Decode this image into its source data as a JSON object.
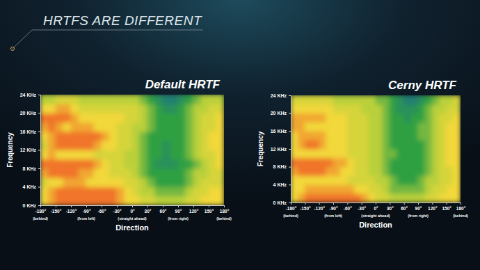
{
  "slide_title": "HRTFS ARE DIFFERENT",
  "chart_data": [
    {
      "type": "heatmap",
      "title": "Default HRTF",
      "x_label": "Direction",
      "y_label": "Frequency",
      "xlim": [
        -180,
        180
      ],
      "ylim": [
        0,
        24
      ],
      "zlim": [
        0,
        10
      ],
      "xticks": [
        {
          "value": -180,
          "label": "-180°"
        },
        {
          "value": -150,
          "label": "-150°"
        },
        {
          "value": -120,
          "label": "-120°"
        },
        {
          "value": -90,
          "label": "-90°"
        },
        {
          "value": -60,
          "label": "-60°"
        },
        {
          "value": -30,
          "label": "-30°"
        },
        {
          "value": 0,
          "label": "0°"
        },
        {
          "value": 30,
          "label": "30°"
        },
        {
          "value": 60,
          "label": "60°"
        },
        {
          "value": 90,
          "label": "90°"
        },
        {
          "value": 120,
          "label": "120°"
        },
        {
          "value": 150,
          "label": "150°"
        },
        {
          "value": 180,
          "label": "180°"
        }
      ],
      "yticks": [
        {
          "value": 0,
          "label": "0 KHz"
        },
        {
          "value": 4,
          "label": "4 KHz"
        },
        {
          "value": 8,
          "label": "8 KHz"
        },
        {
          "value": 12,
          "label": "12 KHz"
        },
        {
          "value": 16,
          "label": "16 KHz"
        },
        {
          "value": 20,
          "label": "20 KHz"
        },
        {
          "value": 24,
          "label": "24 KHz"
        }
      ],
      "direction_notes": [
        {
          "value": -180,
          "label": "(behind)"
        },
        {
          "value": -90,
          "label": "(from left)"
        },
        {
          "value": 0,
          "label": "(straight ahead)"
        },
        {
          "value": 90,
          "label": "(from right)"
        },
        {
          "value": 180,
          "label": "(behind)"
        }
      ],
      "x_bins": [
        -180,
        -165,
        -150,
        -135,
        -120,
        -105,
        -90,
        -75,
        -60,
        -45,
        -30,
        -15,
        0,
        15,
        30,
        45,
        60,
        75,
        90,
        105,
        120,
        135,
        150,
        165,
        180
      ],
      "y_bins": [
        0,
        2,
        4,
        6,
        8,
        10,
        12,
        14,
        16,
        18,
        20,
        22,
        24
      ],
      "cells": [
        [
          7,
          8,
          9,
          9,
          9,
          9,
          9,
          9,
          9,
          9,
          8,
          7,
          7,
          6,
          6,
          5,
          5,
          5,
          5,
          6,
          6,
          7,
          7,
          7
        ],
        [
          7,
          8,
          9,
          9,
          9,
          9,
          9,
          9,
          9,
          9,
          8,
          7,
          6,
          5,
          5,
          4,
          4,
          4,
          4,
          5,
          6,
          6,
          7,
          7
        ],
        [
          6,
          7,
          7,
          8,
          8,
          8,
          7,
          7,
          7,
          7,
          7,
          6,
          6,
          5,
          4,
          3,
          3,
          3,
          3,
          4,
          5,
          6,
          6,
          6
        ],
        [
          8,
          9,
          9,
          9,
          9,
          8,
          8,
          7,
          7,
          6,
          6,
          6,
          5,
          4,
          3,
          3,
          3,
          3,
          3,
          4,
          5,
          5,
          6,
          6
        ],
        [
          9,
          9,
          9,
          9,
          9,
          9,
          9,
          8,
          7,
          6,
          6,
          5,
          5,
          4,
          3,
          2,
          2,
          2,
          3,
          3,
          4,
          5,
          6,
          7
        ],
        [
          7,
          8,
          7,
          7,
          7,
          7,
          7,
          6,
          6,
          6,
          6,
          5,
          5,
          4,
          3,
          3,
          2,
          3,
          3,
          4,
          5,
          6,
          6,
          7
        ],
        [
          6,
          8,
          9,
          9,
          9,
          9,
          9,
          8,
          7,
          7,
          6,
          6,
          5,
          4,
          3,
          3,
          2,
          3,
          3,
          4,
          5,
          6,
          7,
          7
        ],
        [
          7,
          8,
          9,
          9,
          9,
          9,
          9,
          9,
          8,
          7,
          6,
          6,
          5,
          4,
          3,
          3,
          3,
          3,
          3,
          4,
          5,
          6,
          7,
          7
        ],
        [
          8,
          9,
          8,
          7,
          8,
          8,
          8,
          7,
          7,
          7,
          6,
          6,
          5,
          5,
          4,
          3,
          3,
          3,
          3,
          4,
          5,
          6,
          6,
          7
        ],
        [
          9,
          9,
          9,
          9,
          8,
          7,
          7,
          7,
          7,
          7,
          7,
          6,
          6,
          5,
          4,
          3,
          3,
          3,
          3,
          4,
          5,
          6,
          6,
          7
        ],
        [
          7,
          7,
          8,
          8,
          7,
          6,
          6,
          6,
          6,
          6,
          6,
          6,
          6,
          5,
          4,
          3,
          2,
          2,
          3,
          4,
          5,
          5,
          6,
          6
        ],
        [
          5,
          5,
          6,
          6,
          6,
          5,
          5,
          5,
          5,
          5,
          5,
          5,
          5,
          4,
          3,
          2,
          1,
          1,
          2,
          3,
          4,
          5,
          5,
          5
        ]
      ]
    },
    {
      "type": "heatmap",
      "title": "Cerny HRTF",
      "x_label": "Direction",
      "y_label": "Frequency",
      "xlim": [
        -180,
        180
      ],
      "ylim": [
        0,
        24
      ],
      "zlim": [
        0,
        10
      ],
      "xticks": [
        {
          "value": -180,
          "label": "-180°"
        },
        {
          "value": -150,
          "label": "-150°"
        },
        {
          "value": -120,
          "label": "-120°"
        },
        {
          "value": -90,
          "label": "-90°"
        },
        {
          "value": -60,
          "label": "-60°"
        },
        {
          "value": -30,
          "label": "-30°"
        },
        {
          "value": 0,
          "label": "0°"
        },
        {
          "value": 30,
          "label": "30°"
        },
        {
          "value": 60,
          "label": "60°"
        },
        {
          "value": 90,
          "label": "90°"
        },
        {
          "value": 120,
          "label": "120°"
        },
        {
          "value": 150,
          "label": "150°"
        },
        {
          "value": 180,
          "label": "180°"
        }
      ],
      "yticks": [
        {
          "value": 0,
          "label": "0 KHz"
        },
        {
          "value": 4,
          "label": "4 KHz"
        },
        {
          "value": 8,
          "label": "8 KHz"
        },
        {
          "value": 12,
          "label": "12 KHz"
        },
        {
          "value": 16,
          "label": "16 KHz"
        },
        {
          "value": 20,
          "label": "20 KHz"
        },
        {
          "value": 24,
          "label": "24 KHz"
        }
      ],
      "direction_notes": [
        {
          "value": -180,
          "label": "(behind)"
        },
        {
          "value": -90,
          "label": "(from left)"
        },
        {
          "value": 0,
          "label": "(straight ahead)"
        },
        {
          "value": 90,
          "label": "(from right)"
        },
        {
          "value": 180,
          "label": "(behind)"
        }
      ],
      "x_bins": [
        -180,
        -165,
        -150,
        -135,
        -120,
        -105,
        -90,
        -75,
        -60,
        -45,
        -30,
        -15,
        0,
        15,
        30,
        45,
        60,
        75,
        90,
        105,
        120,
        135,
        150,
        165,
        180
      ],
      "y_bins": [
        0,
        2,
        4,
        6,
        8,
        10,
        12,
        14,
        16,
        18,
        20,
        22,
        24
      ],
      "cells": [
        [
          7,
          8,
          9,
          9,
          9,
          9,
          9,
          9,
          9,
          9,
          8,
          7,
          6,
          6,
          5,
          5,
          5,
          5,
          5,
          6,
          6,
          7,
          7,
          7
        ],
        [
          7,
          7,
          8,
          8,
          8,
          8,
          8,
          8,
          8,
          7,
          7,
          6,
          6,
          5,
          4,
          4,
          4,
          4,
          4,
          5,
          6,
          6,
          7,
          7
        ],
        [
          7,
          7,
          7,
          7,
          7,
          7,
          7,
          7,
          6,
          6,
          6,
          6,
          5,
          5,
          4,
          3,
          3,
          3,
          4,
          5,
          5,
          6,
          6,
          7
        ],
        [
          8,
          9,
          9,
          9,
          9,
          8,
          8,
          7,
          7,
          6,
          6,
          5,
          5,
          4,
          3,
          3,
          3,
          3,
          3,
          4,
          5,
          6,
          6,
          7
        ],
        [
          9,
          9,
          9,
          9,
          9,
          9,
          8,
          8,
          7,
          6,
          6,
          5,
          5,
          4,
          3,
          3,
          3,
          3,
          3,
          4,
          5,
          6,
          7,
          7
        ],
        [
          7,
          7,
          7,
          7,
          7,
          7,
          7,
          7,
          6,
          6,
          6,
          5,
          5,
          4,
          4,
          3,
          3,
          3,
          3,
          4,
          5,
          6,
          7,
          7
        ],
        [
          7,
          8,
          9,
          9,
          8,
          7,
          7,
          7,
          6,
          6,
          6,
          5,
          5,
          4,
          3,
          3,
          3,
          3,
          3,
          4,
          5,
          6,
          7,
          7
        ],
        [
          7,
          8,
          8,
          8,
          8,
          7,
          7,
          7,
          6,
          6,
          6,
          5,
          5,
          4,
          3,
          3,
          3,
          3,
          4,
          4,
          5,
          6,
          7,
          7
        ],
        [
          8,
          8,
          7,
          7,
          7,
          7,
          7,
          7,
          6,
          6,
          6,
          5,
          5,
          4,
          3,
          3,
          3,
          3,
          4,
          4,
          5,
          6,
          7,
          7
        ],
        [
          8,
          8,
          8,
          8,
          8,
          7,
          7,
          7,
          6,
          6,
          6,
          5,
          5,
          4,
          3,
          3,
          2,
          3,
          3,
          4,
          5,
          6,
          6,
          7
        ],
        [
          7,
          7,
          7,
          7,
          7,
          7,
          6,
          6,
          6,
          6,
          5,
          5,
          5,
          4,
          3,
          2,
          2,
          2,
          3,
          4,
          5,
          5,
          6,
          6
        ],
        [
          6,
          6,
          6,
          6,
          6,
          6,
          5,
          5,
          5,
          5,
          5,
          5,
          4,
          4,
          3,
          2,
          1,
          1,
          2,
          3,
          4,
          5,
          5,
          6
        ]
      ]
    }
  ]
}
